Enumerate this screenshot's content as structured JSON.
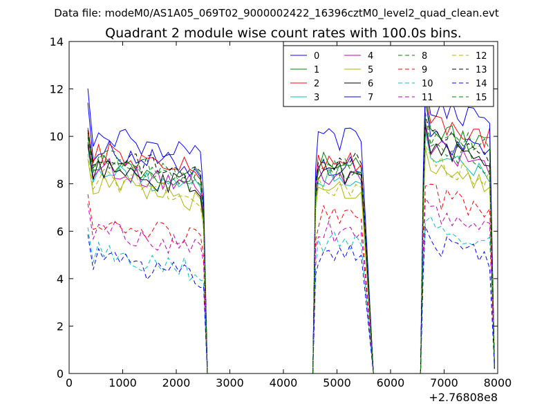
{
  "chart_data": {
    "type": "line",
    "suptitle": "Data file: modeM0/AS1A05_069T02_9000002422_16396cztM0_level2_quad_clean.evt",
    "title": "Quadrant 2 module wise count rates with 100.0s bins.",
    "xlabel": "",
    "ylabel": "",
    "x_offset_label": "+2.76808e8",
    "xlim": [
      0,
      8000
    ],
    "ylim": [
      0,
      14
    ],
    "xticks": [
      0,
      1000,
      2000,
      3000,
      4000,
      5000,
      6000,
      7000,
      8000
    ],
    "yticks": [
      0,
      2,
      4,
      6,
      8,
      10,
      12,
      14
    ],
    "legend_position": "top-right",
    "segments": [
      {
        "start": 350,
        "end": 2450
      },
      {
        "start": 4650,
        "end": 5450
      },
      {
        "start": 6650,
        "end": 7850
      }
    ],
    "zero_gaps": [
      [
        2580,
        4550
      ],
      [
        5680,
        6560
      ]
    ],
    "series": [
      {
        "name": "0",
        "color": "#0000ff",
        "dash": "solid",
        "levels": [
          9.5,
          8.7,
          10.0
        ],
        "peak": 11.6
      },
      {
        "name": "1",
        "color": "#008000",
        "dash": "solid",
        "levels": [
          9.1,
          8.9,
          10.4
        ],
        "peak": 11.6
      },
      {
        "name": "2",
        "color": "#ff0000",
        "dash": "solid",
        "levels": [
          9.4,
          9.0,
          10.7
        ],
        "peak": 11.9
      },
      {
        "name": "3",
        "color": "#00bfbf",
        "dash": "solid",
        "levels": [
          8.6,
          8.2,
          9.3
        ],
        "peak": 10.2
      },
      {
        "name": "4",
        "color": "#bf00bf",
        "dash": "solid",
        "levels": [
          8.8,
          8.3,
          9.5
        ],
        "peak": 10.4
      },
      {
        "name": "5",
        "color": "#a8b800",
        "dash": "solid",
        "levels": [
          8.1,
          7.8,
          8.9
        ],
        "peak": 9.5
      },
      {
        "name": "6",
        "color": "#000000",
        "dash": "solid",
        "levels": [
          8.7,
          8.5,
          9.7
        ],
        "peak": 10.6
      },
      {
        "name": "7",
        "color": "#0000ff",
        "dash": "solid",
        "levels": [
          10.1,
          9.9,
          11.4
        ],
        "peak": 12.3
      },
      {
        "name": "8",
        "color": "#008000",
        "dash": "dashed",
        "levels": [
          9.2,
          8.7,
          10.2
        ],
        "peak": 11.0
      },
      {
        "name": "9",
        "color": "#ff0000",
        "dash": "dashed",
        "levels": [
          6.6,
          6.6,
          7.6
        ],
        "peak": 7.9
      },
      {
        "name": "10",
        "color": "#00bfbf",
        "dash": "dashed",
        "levels": [
          5.2,
          5.5,
          6.3
        ],
        "peak": 6.4
      },
      {
        "name": "11",
        "color": "#bf00bf",
        "dash": "dashed",
        "levels": [
          6.2,
          6.0,
          6.8
        ],
        "peak": 7.4
      },
      {
        "name": "12",
        "color": "#a8b800",
        "dash": "dashed",
        "levels": [
          8.3,
          7.9,
          9.0
        ],
        "peak": 9.6
      },
      {
        "name": "13",
        "color": "#000000",
        "dash": "dashed",
        "levels": [
          9.3,
          8.9,
          10.1
        ],
        "peak": 10.8
      },
      {
        "name": "14",
        "color": "#0000ff",
        "dash": "dashed",
        "levels": [
          4.9,
          5.0,
          5.6
        ],
        "peak": 6.2
      },
      {
        "name": "15",
        "color": "#008000",
        "dash": "dashed",
        "levels": [
          9.0,
          8.4,
          9.6
        ],
        "peak": 11.0
      }
    ]
  }
}
